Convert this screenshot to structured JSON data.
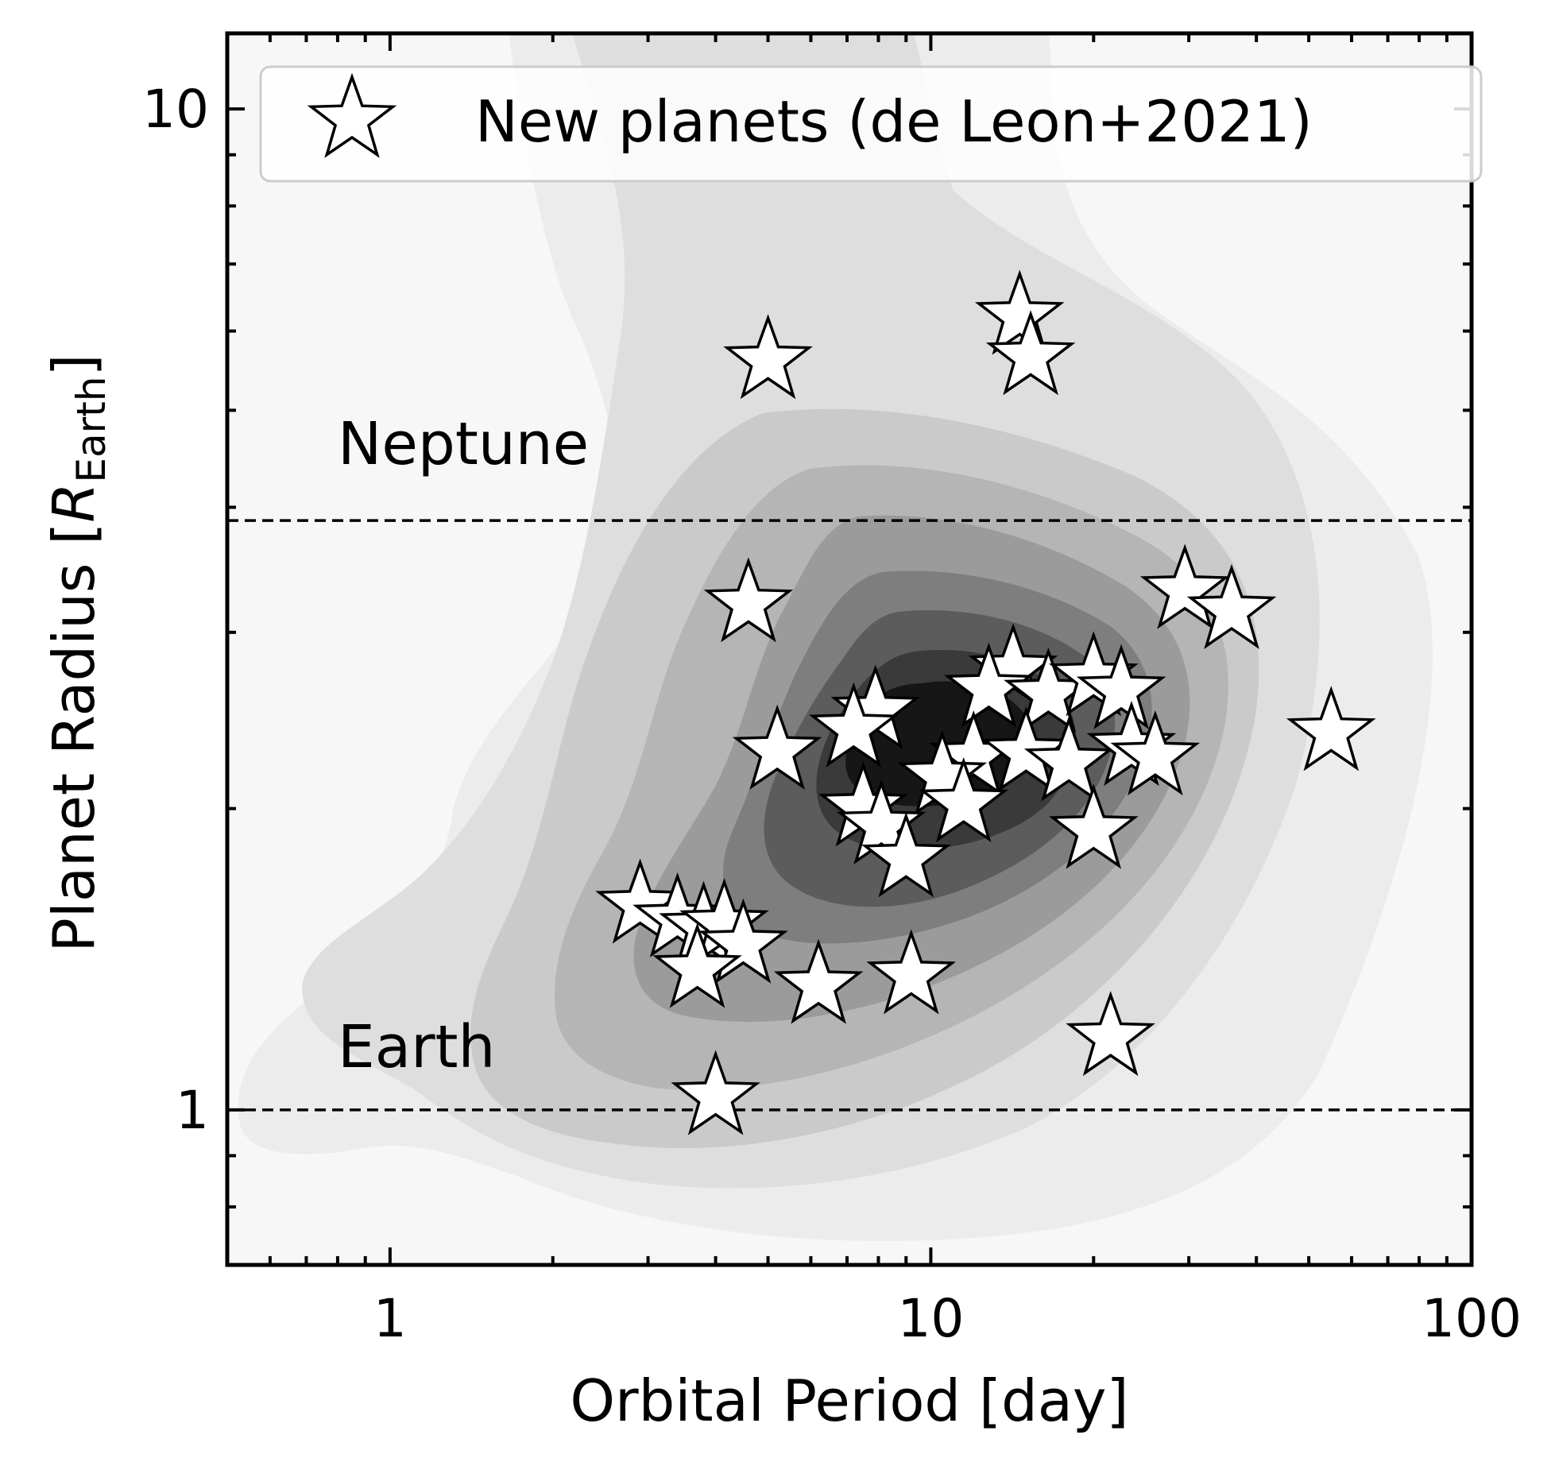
{
  "chart_data": {
    "type": "scatter",
    "title": "",
    "xlabel": "Orbital Period [day]",
    "ylabel": {
      "prefix": "Planet Radius [",
      "symbol": "R",
      "subscript": "Earth",
      "suffix": "]"
    },
    "xscale": "log",
    "yscale": "log",
    "xlim": [
      0.5,
      100
    ],
    "ylim": [
      0.7,
      11.9
    ],
    "xticks": [
      {
        "value": 1,
        "label": "1"
      },
      {
        "value": 10,
        "label": "10"
      },
      {
        "value": 100,
        "label": "100"
      }
    ],
    "yticks": [
      {
        "value": 1,
        "label": "1"
      },
      {
        "value": 10,
        "label": "10"
      }
    ],
    "grid": false,
    "legend": {
      "position": "top-right",
      "entries": [
        {
          "marker": "star",
          "label": "New planets (de Leon+2021)"
        }
      ]
    },
    "reference_lines": [
      {
        "label": "Neptune",
        "y": 3.88,
        "style": "dashed"
      },
      {
        "label": "Earth",
        "y": 1.0,
        "style": "dashed"
      }
    ],
    "background": {
      "type": "density-contour",
      "colormap": "greys",
      "levels": 9
    },
    "series": [
      {
        "marker": "star",
        "color": "#ffffff",
        "edgecolor": "#000000",
        "points": [
          {
            "x": 14.6,
            "y": 6.2
          },
          {
            "x": 15.3,
            "y": 5.65
          },
          {
            "x": 5.0,
            "y": 5.6
          },
          {
            "x": 4.6,
            "y": 3.2
          },
          {
            "x": 29.5,
            "y": 3.3
          },
          {
            "x": 36.0,
            "y": 3.15
          },
          {
            "x": 14.2,
            "y": 2.75
          },
          {
            "x": 12.8,
            "y": 2.63
          },
          {
            "x": 16.5,
            "y": 2.6
          },
          {
            "x": 20.0,
            "y": 2.7
          },
          {
            "x": 22.5,
            "y": 2.62
          },
          {
            "x": 7.9,
            "y": 2.5
          },
          {
            "x": 7.2,
            "y": 2.4
          },
          {
            "x": 55.0,
            "y": 2.38
          },
          {
            "x": 5.2,
            "y": 2.28
          },
          {
            "x": 12.0,
            "y": 2.25
          },
          {
            "x": 15.0,
            "y": 2.27
          },
          {
            "x": 18.0,
            "y": 2.22
          },
          {
            "x": 23.5,
            "y": 2.3
          },
          {
            "x": 26.0,
            "y": 2.25
          },
          {
            "x": 10.5,
            "y": 2.15
          },
          {
            "x": 11.5,
            "y": 2.02
          },
          {
            "x": 7.5,
            "y": 2.0
          },
          {
            "x": 8.1,
            "y": 1.92
          },
          {
            "x": 20.0,
            "y": 1.9
          },
          {
            "x": 9.0,
            "y": 1.78
          },
          {
            "x": 2.9,
            "y": 1.6
          },
          {
            "x": 3.4,
            "y": 1.55
          },
          {
            "x": 3.8,
            "y": 1.52
          },
          {
            "x": 4.15,
            "y": 1.53
          },
          {
            "x": 4.5,
            "y": 1.46
          },
          {
            "x": 3.7,
            "y": 1.38
          },
          {
            "x": 6.2,
            "y": 1.33
          },
          {
            "x": 9.2,
            "y": 1.36
          },
          {
            "x": 21.5,
            "y": 1.18
          },
          {
            "x": 4.0,
            "y": 1.03
          }
        ]
      }
    ]
  }
}
